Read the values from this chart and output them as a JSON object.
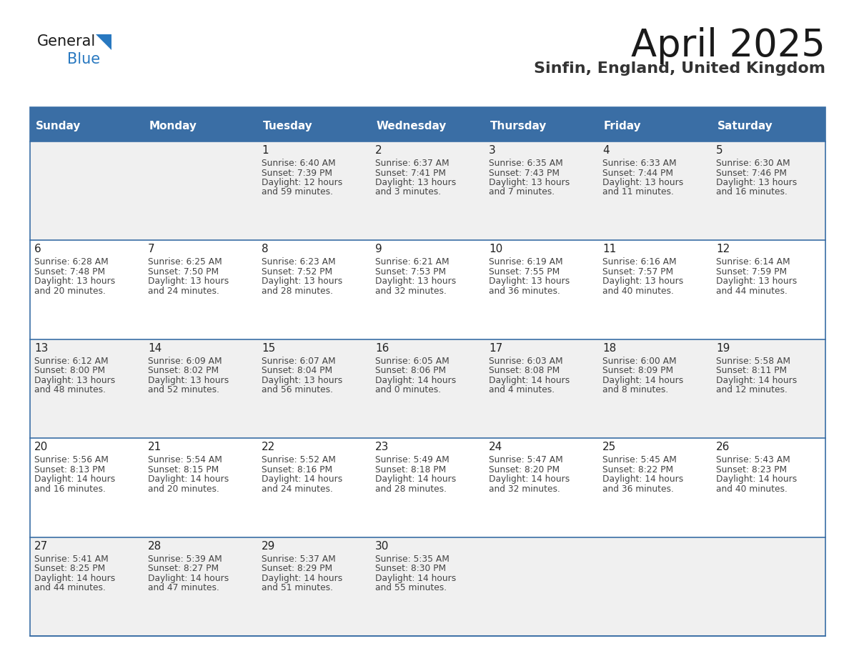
{
  "title": "April 2025",
  "subtitle": "Sinfin, England, United Kingdom",
  "header_bg": "#3a6ea5",
  "header_text_color": "#ffffff",
  "cell_bg_even": "#f0f0f0",
  "cell_bg_odd": "#ffffff",
  "grid_color": "#3a6ea5",
  "day_names": [
    "Sunday",
    "Monday",
    "Tuesday",
    "Wednesday",
    "Thursday",
    "Friday",
    "Saturday"
  ],
  "title_color": "#1a1a1a",
  "subtitle_color": "#333333",
  "day_number_color": "#222222",
  "info_color": "#444444",
  "logo_general_color": "#1a1a1a",
  "logo_blue_color": "#2878c0",
  "weeks": [
    [
      {
        "day": "",
        "sunrise": "",
        "sunset": "",
        "daylight": ""
      },
      {
        "day": "",
        "sunrise": "",
        "sunset": "",
        "daylight": ""
      },
      {
        "day": "1",
        "sunrise": "Sunrise: 6:40 AM",
        "sunset": "Sunset: 7:39 PM",
        "daylight": "Daylight: 12 hours\nand 59 minutes."
      },
      {
        "day": "2",
        "sunrise": "Sunrise: 6:37 AM",
        "sunset": "Sunset: 7:41 PM",
        "daylight": "Daylight: 13 hours\nand 3 minutes."
      },
      {
        "day": "3",
        "sunrise": "Sunrise: 6:35 AM",
        "sunset": "Sunset: 7:43 PM",
        "daylight": "Daylight: 13 hours\nand 7 minutes."
      },
      {
        "day": "4",
        "sunrise": "Sunrise: 6:33 AM",
        "sunset": "Sunset: 7:44 PM",
        "daylight": "Daylight: 13 hours\nand 11 minutes."
      },
      {
        "day": "5",
        "sunrise": "Sunrise: 6:30 AM",
        "sunset": "Sunset: 7:46 PM",
        "daylight": "Daylight: 13 hours\nand 16 minutes."
      }
    ],
    [
      {
        "day": "6",
        "sunrise": "Sunrise: 6:28 AM",
        "sunset": "Sunset: 7:48 PM",
        "daylight": "Daylight: 13 hours\nand 20 minutes."
      },
      {
        "day": "7",
        "sunrise": "Sunrise: 6:25 AM",
        "sunset": "Sunset: 7:50 PM",
        "daylight": "Daylight: 13 hours\nand 24 minutes."
      },
      {
        "day": "8",
        "sunrise": "Sunrise: 6:23 AM",
        "sunset": "Sunset: 7:52 PM",
        "daylight": "Daylight: 13 hours\nand 28 minutes."
      },
      {
        "day": "9",
        "sunrise": "Sunrise: 6:21 AM",
        "sunset": "Sunset: 7:53 PM",
        "daylight": "Daylight: 13 hours\nand 32 minutes."
      },
      {
        "day": "10",
        "sunrise": "Sunrise: 6:19 AM",
        "sunset": "Sunset: 7:55 PM",
        "daylight": "Daylight: 13 hours\nand 36 minutes."
      },
      {
        "day": "11",
        "sunrise": "Sunrise: 6:16 AM",
        "sunset": "Sunset: 7:57 PM",
        "daylight": "Daylight: 13 hours\nand 40 minutes."
      },
      {
        "day": "12",
        "sunrise": "Sunrise: 6:14 AM",
        "sunset": "Sunset: 7:59 PM",
        "daylight": "Daylight: 13 hours\nand 44 minutes."
      }
    ],
    [
      {
        "day": "13",
        "sunrise": "Sunrise: 6:12 AM",
        "sunset": "Sunset: 8:00 PM",
        "daylight": "Daylight: 13 hours\nand 48 minutes."
      },
      {
        "day": "14",
        "sunrise": "Sunrise: 6:09 AM",
        "sunset": "Sunset: 8:02 PM",
        "daylight": "Daylight: 13 hours\nand 52 minutes."
      },
      {
        "day": "15",
        "sunrise": "Sunrise: 6:07 AM",
        "sunset": "Sunset: 8:04 PM",
        "daylight": "Daylight: 13 hours\nand 56 minutes."
      },
      {
        "day": "16",
        "sunrise": "Sunrise: 6:05 AM",
        "sunset": "Sunset: 8:06 PM",
        "daylight": "Daylight: 14 hours\nand 0 minutes."
      },
      {
        "day": "17",
        "sunrise": "Sunrise: 6:03 AM",
        "sunset": "Sunset: 8:08 PM",
        "daylight": "Daylight: 14 hours\nand 4 minutes."
      },
      {
        "day": "18",
        "sunrise": "Sunrise: 6:00 AM",
        "sunset": "Sunset: 8:09 PM",
        "daylight": "Daylight: 14 hours\nand 8 minutes."
      },
      {
        "day": "19",
        "sunrise": "Sunrise: 5:58 AM",
        "sunset": "Sunset: 8:11 PM",
        "daylight": "Daylight: 14 hours\nand 12 minutes."
      }
    ],
    [
      {
        "day": "20",
        "sunrise": "Sunrise: 5:56 AM",
        "sunset": "Sunset: 8:13 PM",
        "daylight": "Daylight: 14 hours\nand 16 minutes."
      },
      {
        "day": "21",
        "sunrise": "Sunrise: 5:54 AM",
        "sunset": "Sunset: 8:15 PM",
        "daylight": "Daylight: 14 hours\nand 20 minutes."
      },
      {
        "day": "22",
        "sunrise": "Sunrise: 5:52 AM",
        "sunset": "Sunset: 8:16 PM",
        "daylight": "Daylight: 14 hours\nand 24 minutes."
      },
      {
        "day": "23",
        "sunrise": "Sunrise: 5:49 AM",
        "sunset": "Sunset: 8:18 PM",
        "daylight": "Daylight: 14 hours\nand 28 minutes."
      },
      {
        "day": "24",
        "sunrise": "Sunrise: 5:47 AM",
        "sunset": "Sunset: 8:20 PM",
        "daylight": "Daylight: 14 hours\nand 32 minutes."
      },
      {
        "day": "25",
        "sunrise": "Sunrise: 5:45 AM",
        "sunset": "Sunset: 8:22 PM",
        "daylight": "Daylight: 14 hours\nand 36 minutes."
      },
      {
        "day": "26",
        "sunrise": "Sunrise: 5:43 AM",
        "sunset": "Sunset: 8:23 PM",
        "daylight": "Daylight: 14 hours\nand 40 minutes."
      }
    ],
    [
      {
        "day": "27",
        "sunrise": "Sunrise: 5:41 AM",
        "sunset": "Sunset: 8:25 PM",
        "daylight": "Daylight: 14 hours\nand 44 minutes."
      },
      {
        "day": "28",
        "sunrise": "Sunrise: 5:39 AM",
        "sunset": "Sunset: 8:27 PM",
        "daylight": "Daylight: 14 hours\nand 47 minutes."
      },
      {
        "day": "29",
        "sunrise": "Sunrise: 5:37 AM",
        "sunset": "Sunset: 8:29 PM",
        "daylight": "Daylight: 14 hours\nand 51 minutes."
      },
      {
        "day": "30",
        "sunrise": "Sunrise: 5:35 AM",
        "sunset": "Sunset: 8:30 PM",
        "daylight": "Daylight: 14 hours\nand 55 minutes."
      },
      {
        "day": "",
        "sunrise": "",
        "sunset": "",
        "daylight": ""
      },
      {
        "day": "",
        "sunrise": "",
        "sunset": "",
        "daylight": ""
      },
      {
        "day": "",
        "sunrise": "",
        "sunset": "",
        "daylight": ""
      }
    ]
  ]
}
